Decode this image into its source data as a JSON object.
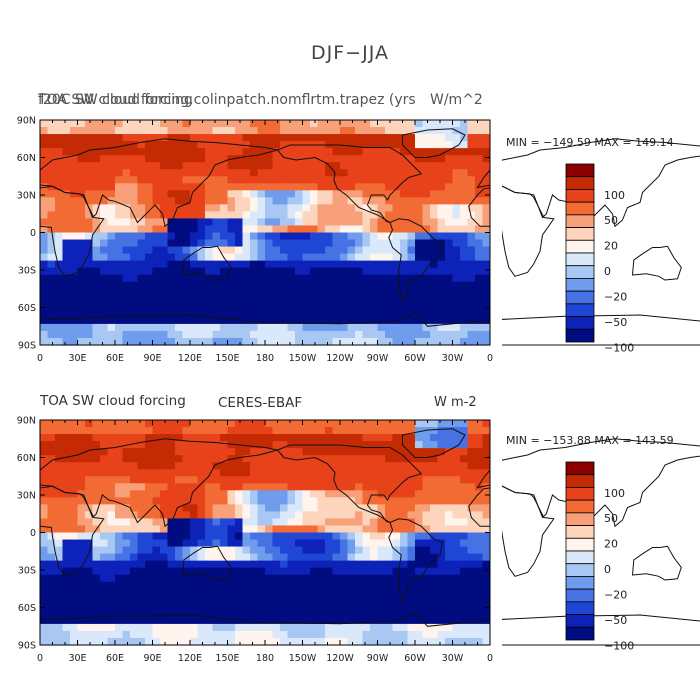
{
  "title": "DJF−JJA",
  "panels": [
    {
      "id": "model",
      "left_title_a": "f20C SW cloud forcing",
      "left_title_b": "TOA SW cloud forcing.colinpatch.nomflrtm.trapez (yrs",
      "right_title_a": "W/m^2",
      "right_title_b": "W m-2",
      "units": "",
      "stats": "MIN = −149.59 MAX = 149.14",
      "min": -149.59,
      "max": 149.14
    },
    {
      "id": "obs",
      "left_title": "TOA SW cloud forcing",
      "center_title": "CERES-EBAF",
      "units": "W m-2",
      "stats": "MIN = −153.88 MAX = 143.59",
      "min": -153.88,
      "max": 143.59
    }
  ],
  "axes": {
    "lat_labels": [
      "90N",
      "60N",
      "30N",
      "0",
      "30S",
      "60S",
      "90S"
    ],
    "lon_labels": [
      "0",
      "30E",
      "60E",
      "90E",
      "120E",
      "150E",
      "180",
      "150W",
      "120W",
      "90W",
      "60W",
      "30W",
      "0"
    ]
  },
  "colorbar": {
    "labels": [
      "100",
      "50",
      "20",
      "0",
      "−20",
      "−50",
      "−100"
    ],
    "colors": [
      "#8b0000",
      "#c42a04",
      "#e8421a",
      "#f26a34",
      "#f7a07a",
      "#fcd5bc",
      "#fff5ee",
      "#d9e8fb",
      "#a9c7f3",
      "#6f9ced",
      "#4672e4",
      "#2046d6",
      "#0d22b8",
      "#000c80"
    ]
  }
}
